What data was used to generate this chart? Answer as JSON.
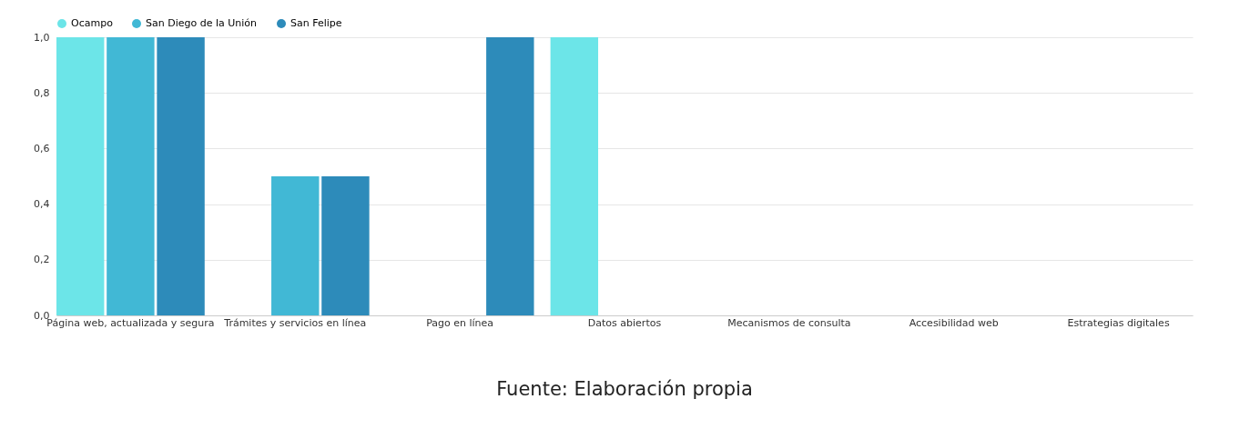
{
  "chart_data": {
    "type": "bar",
    "categories": [
      "Página web, actualizada y segura",
      "Trámites y servicios en línea",
      "Pago en línea",
      "Datos abiertos",
      "Mecanismos de consulta",
      "Accesibilidad web",
      "Estrategias digitales"
    ],
    "series": [
      {
        "name": "Ocampo",
        "color": "#6ce5e8",
        "values": [
          1,
          0,
          0,
          1,
          0,
          0,
          0
        ]
      },
      {
        "name": "San Diego de la Unión",
        "color": "#41b8d5",
        "values": [
          1,
          0.5,
          0,
          0,
          0,
          0,
          0
        ]
      },
      {
        "name": "San Felipe",
        "color": "#2d8bba",
        "values": [
          1,
          0.5,
          1,
          0,
          0,
          0,
          0
        ]
      }
    ],
    "ylim": [
      0,
      1
    ],
    "yticks": [
      {
        "value": 0,
        "label": "0,0"
      },
      {
        "value": 0.2,
        "label": "0,2"
      },
      {
        "value": 0.4,
        "label": "0,4"
      },
      {
        "value": 0.6,
        "label": "0,6"
      },
      {
        "value": 0.8,
        "label": "0,8"
      },
      {
        "value": 1,
        "label": "1,0"
      }
    ],
    "grid": "y",
    "legend": "top",
    "annotations": [
      "Fuente: Elaboración propia"
    ]
  }
}
